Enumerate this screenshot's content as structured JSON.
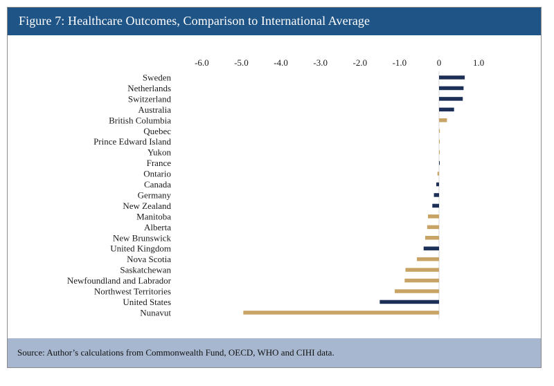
{
  "figure": {
    "title": "Figure 7: Healthcare Outcomes, Comparison to International Average",
    "source": "Source: Author’s calculations from Commonwealth Fund, OECD, WHO and CIHI data."
  },
  "colors": {
    "title_bar": "#1f5487",
    "footer_bar": "#a7b7cf",
    "country_bar": "#1b2f57",
    "province_bar": "#c7a465"
  },
  "chart_data": {
    "type": "bar",
    "orientation": "horizontal",
    "title": "Figure 7: Healthcare Outcomes, Comparison to International Average",
    "xlabel": "",
    "ylabel": "",
    "xlim": [
      -6.0,
      1.0
    ],
    "xticks": [
      -6.0,
      -5.0,
      -4.0,
      -3.0,
      -2.0,
      -1.0,
      0,
      1.0
    ],
    "xtick_labels": [
      "-6.0",
      "-5.0",
      "-4.0",
      "-3.0",
      "-2.0",
      "-1.0",
      "0",
      "1.0"
    ],
    "grid": false,
    "legend": "none",
    "categories": [
      "Sweden",
      "Netherlands",
      "Switzerland",
      "Australia",
      "British Columbia",
      "Quebec",
      "Prince Edward Island",
      "Yukon",
      "France",
      "Ontario",
      "Canada",
      "Germany",
      "New Zealand",
      "Manitoba",
      "Alberta",
      "New Brunswick",
      "United Kingdom",
      "Nova Scotia",
      "Saskatchewan",
      "Newfoundland and Labrador",
      "Northwest Territories",
      "United States",
      "Nunavut"
    ],
    "values": [
      0.65,
      0.62,
      0.6,
      0.38,
      0.2,
      0.02,
      0.01,
      0.01,
      0.01,
      -0.04,
      -0.07,
      -0.13,
      -0.17,
      -0.28,
      -0.3,
      -0.35,
      -0.39,
      -0.56,
      -0.85,
      -0.87,
      -1.12,
      -1.5,
      -4.95
    ],
    "groups": [
      "country",
      "country",
      "country",
      "country",
      "province",
      "province",
      "province",
      "province",
      "country",
      "province",
      "country",
      "country",
      "country",
      "province",
      "province",
      "province",
      "country",
      "province",
      "province",
      "province",
      "province",
      "country",
      "province"
    ]
  }
}
